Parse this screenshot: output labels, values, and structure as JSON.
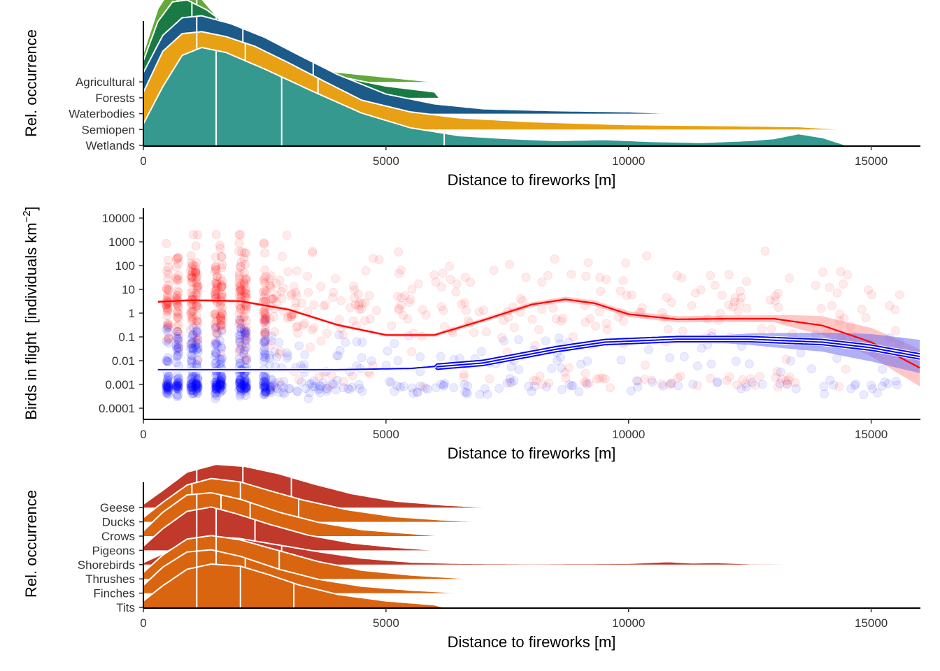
{
  "chart_data": [
    {
      "type": "ridgeline",
      "panel": "habitat",
      "xlabel": "Distance to fireworks [m]",
      "ylabel": "Rel. occurrence",
      "xlim": [
        0,
        16000
      ],
      "xticks": [
        0,
        5000,
        10000,
        15000
      ],
      "quantile_lines": true,
      "grid": false,
      "categories": [
        {
          "name": "Wetlands",
          "color": "#35998f",
          "quantiles": [
            1500,
            2850,
            6200
          ],
          "density": [
            [
              0,
              0.22
            ],
            [
              400,
              0.6
            ],
            [
              800,
              0.92
            ],
            [
              1200,
              1.0
            ],
            [
              1700,
              0.95
            ],
            [
              2500,
              0.78
            ],
            [
              3500,
              0.55
            ],
            [
              4500,
              0.33
            ],
            [
              5500,
              0.18
            ],
            [
              6500,
              0.1
            ],
            [
              7500,
              0.07
            ],
            [
              8500,
              0.05
            ],
            [
              9500,
              0.06
            ],
            [
              10500,
              0.04
            ],
            [
              11500,
              0.03
            ],
            [
              12500,
              0.05
            ],
            [
              13000,
              0.07
            ],
            [
              13500,
              0.12
            ],
            [
              14000,
              0.08
            ],
            [
              14500,
              0.0
            ]
          ]
        },
        {
          "name": "Semiopen",
          "color": "#e8a114",
          "quantiles": [
            1100,
            2100,
            3600
          ],
          "density": [
            [
              0,
              0.38
            ],
            [
              400,
              0.8
            ],
            [
              800,
              0.98
            ],
            [
              1200,
              1.0
            ],
            [
              1700,
              0.95
            ],
            [
              2300,
              0.85
            ],
            [
              3000,
              0.68
            ],
            [
              3700,
              0.5
            ],
            [
              4500,
              0.3
            ],
            [
              5500,
              0.18
            ],
            [
              6500,
              0.12
            ],
            [
              8000,
              0.08
            ],
            [
              10000,
              0.05
            ],
            [
              12000,
              0.04
            ],
            [
              13500,
              0.03
            ],
            [
              14500,
              0.0
            ]
          ]
        },
        {
          "name": "Waterbodies",
          "color": "#1c5a8a",
          "quantiles": [
            1100,
            2050,
            3500
          ],
          "density": [
            [
              0,
              0.42
            ],
            [
              400,
              0.8
            ],
            [
              800,
              0.98
            ],
            [
              1200,
              1.0
            ],
            [
              1800,
              0.92
            ],
            [
              2500,
              0.78
            ],
            [
              3200,
              0.6
            ],
            [
              4000,
              0.4
            ],
            [
              5000,
              0.2
            ],
            [
              6000,
              0.1
            ],
            [
              7000,
              0.05
            ],
            [
              8500,
              0.03
            ],
            [
              10000,
              0.02
            ],
            [
              11000,
              0.0
            ]
          ]
        },
        {
          "name": "Forests",
          "color": "#1a7a44",
          "quantiles": [
            1000,
            1500,
            2500
          ],
          "density": [
            [
              0,
              0.38
            ],
            [
              300,
              0.78
            ],
            [
              600,
              0.98
            ],
            [
              900,
              1.0
            ],
            [
              1300,
              0.9
            ],
            [
              1800,
              0.72
            ],
            [
              2500,
              0.52
            ],
            [
              3200,
              0.35
            ],
            [
              4000,
              0.22
            ],
            [
              5000,
              0.12
            ],
            [
              6000,
              0.06
            ],
            [
              6100,
              0.0
            ]
          ]
        },
        {
          "name": "Agricultural",
          "color": "#63a83b",
          "quantiles": [
            700,
            1100,
            1800
          ],
          "density": [
            [
              0,
              0.3
            ],
            [
              300,
              0.75
            ],
            [
              600,
              0.98
            ],
            [
              900,
              1.0
            ],
            [
              1200,
              0.85
            ],
            [
              1600,
              0.62
            ],
            [
              2200,
              0.4
            ],
            [
              3000,
              0.22
            ],
            [
              4000,
              0.1
            ],
            [
              5000,
              0.05
            ],
            [
              6000,
              0.0
            ]
          ]
        }
      ]
    },
    {
      "type": "scatter",
      "panel": "birds-in-flight",
      "xlabel": "Distance to fireworks [m]",
      "ylabel": "Birds in flight [individuals km−2]",
      "ylabel_text": "Birds in flight",
      "ylabel_unit": "individuals km",
      "ylabel_exponent": "−2",
      "xlim": [
        0,
        16000
      ],
      "xticks": [
        0,
        5000,
        10000,
        15000
      ],
      "yscale": "log",
      "ylim": [
        3e-05,
        30000
      ],
      "ytick_labels": [
        "0.0001",
        "0.001",
        "0.01",
        "0.1",
        "1",
        "10",
        "100",
        "1000",
        "10000"
      ],
      "yticks": [
        0.0001,
        0.001,
        0.01,
        0.1,
        1,
        10,
        100,
        1000,
        10000
      ],
      "grid": false,
      "series": [
        {
          "color": "#ff0000",
          "fit": [
            [
              300,
              3.0
            ],
            [
              1000,
              3.5
            ],
            [
              2000,
              3.2
            ],
            [
              3000,
              1.4
            ],
            [
              4000,
              0.32
            ],
            [
              5000,
              0.12
            ],
            [
              6000,
              0.12
            ],
            [
              7000,
              0.5
            ],
            [
              8000,
              2.3
            ],
            [
              8700,
              3.8
            ],
            [
              9300,
              2.6
            ],
            [
              10000,
              0.9
            ],
            [
              11000,
              0.55
            ],
            [
              12000,
              0.58
            ],
            [
              13000,
              0.58
            ],
            [
              14000,
              0.3
            ],
            [
              15000,
              0.06
            ],
            [
              16000,
              0.005
            ]
          ],
          "band_factor": [
            [
              300,
              1.15
            ],
            [
              5000,
              1.15
            ],
            [
              9000,
              1.3
            ],
            [
              13000,
              1.4
            ],
            [
              14500,
              3
            ],
            [
              16000,
              6
            ]
          ]
        },
        {
          "color": "#0000ff",
          "fit": [
            [
              300,
              0.004
            ],
            [
              2000,
              0.004
            ],
            [
              4000,
              0.004
            ],
            [
              5500,
              0.0045
            ],
            [
              7000,
              0.008
            ],
            [
              8500,
              0.03
            ],
            [
              9500,
              0.06
            ],
            [
              11000,
              0.08
            ],
            [
              12500,
              0.08
            ],
            [
              14000,
              0.06
            ],
            [
              15000,
              0.035
            ],
            [
              16000,
              0.015
            ]
          ],
          "band_factor": [
            [
              300,
              1.1
            ],
            [
              5000,
              1.1
            ],
            [
              9000,
              1.3
            ],
            [
              12000,
              1.5
            ],
            [
              14000,
              2.5
            ],
            [
              16000,
              5
            ]
          ]
        }
      ]
    },
    {
      "type": "ridgeline",
      "panel": "species-group",
      "xlabel": "Distance to fireworks [m]",
      "ylabel": "Rel. occurrence",
      "xlim": [
        0,
        16000
      ],
      "xticks": [
        0,
        5000,
        10000,
        15000
      ],
      "quantile_lines": true,
      "grid": false,
      "categories": [
        {
          "name": "Tits",
          "color": "#d96511",
          "quantiles": [
            1100,
            2000,
            3100
          ],
          "density": [
            [
              0,
              0.15
            ],
            [
              400,
              0.5
            ],
            [
              900,
              0.88
            ],
            [
              1400,
              1.0
            ],
            [
              2000,
              0.95
            ],
            [
              2600,
              0.75
            ],
            [
              3200,
              0.52
            ],
            [
              4000,
              0.3
            ],
            [
              5000,
              0.15
            ],
            [
              6000,
              0.06
            ],
            [
              6200,
              0.0
            ]
          ]
        },
        {
          "name": "Finches",
          "color": "#d96511",
          "quantiles": [
            1100,
            1500,
            2100
          ],
          "density": [
            [
              0,
              0.18
            ],
            [
              400,
              0.6
            ],
            [
              900,
              0.95
            ],
            [
              1400,
              1.0
            ],
            [
              2000,
              0.85
            ],
            [
              2800,
              0.55
            ],
            [
              3600,
              0.32
            ],
            [
              4500,
              0.16
            ],
            [
              5500,
              0.07
            ],
            [
              6600,
              0.0
            ]
          ]
        },
        {
          "name": "Thrushes",
          "color": "#d96511",
          "quantiles": [
            1100,
            1500,
            2800
          ],
          "density": [
            [
              0,
              0.15
            ],
            [
              400,
              0.55
            ],
            [
              900,
              0.92
            ],
            [
              1400,
              1.0
            ],
            [
              2000,
              0.9
            ],
            [
              2800,
              0.65
            ],
            [
              3600,
              0.4
            ],
            [
              4500,
              0.2
            ],
            [
              5500,
              0.09
            ],
            [
              6800,
              0.0
            ]
          ]
        },
        {
          "name": "Shorebirds",
          "color": "#c0392b",
          "quantiles": [
            1100,
            2000,
            2850
          ],
          "density": [
            [
              0,
              0.05
            ],
            [
              400,
              0.25
            ],
            [
              900,
              0.55
            ],
            [
              1400,
              0.65
            ],
            [
              2000,
              0.6
            ],
            [
              2800,
              0.45
            ],
            [
              3600,
              0.3
            ],
            [
              4500,
              0.15
            ],
            [
              5500,
              0.06
            ],
            [
              6500,
              0.03
            ],
            [
              8000,
              0.02
            ],
            [
              10000,
              0.03
            ],
            [
              10800,
              0.07
            ],
            [
              11300,
              0.04
            ],
            [
              11800,
              0.05
            ],
            [
              12500,
              0.02
            ],
            [
              14500,
              0.0
            ]
          ]
        },
        {
          "name": "Pigeons",
          "color": "#c0392b",
          "quantiles": [
            1100,
            1500,
            2300
          ],
          "density": [
            [
              0,
              0.1
            ],
            [
              400,
              0.5
            ],
            [
              900,
              0.9
            ],
            [
              1400,
              1.0
            ],
            [
              1900,
              0.85
            ],
            [
              2600,
              0.6
            ],
            [
              3400,
              0.35
            ],
            [
              4300,
              0.17
            ],
            [
              5200,
              0.07
            ],
            [
              6100,
              0.0
            ]
          ]
        },
        {
          "name": "Crows",
          "color": "#d96511",
          "quantiles": [
            1100,
            1600,
            2200
          ],
          "density": [
            [
              0,
              0.12
            ],
            [
              400,
              0.55
            ],
            [
              900,
              0.95
            ],
            [
              1400,
              1.0
            ],
            [
              2000,
              0.85
            ],
            [
              2800,
              0.55
            ],
            [
              3600,
              0.32
            ],
            [
              4500,
              0.15
            ],
            [
              5500,
              0.06
            ],
            [
              6200,
              0.0
            ]
          ]
        },
        {
          "name": "Ducks",
          "color": "#d96511",
          "quantiles": [
            1000,
            2000,
            3200
          ],
          "density": [
            [
              0,
              0.1
            ],
            [
              400,
              0.45
            ],
            [
              900,
              0.85
            ],
            [
              1400,
              1.0
            ],
            [
              2000,
              0.92
            ],
            [
              2600,
              0.72
            ],
            [
              3300,
              0.5
            ],
            [
              4200,
              0.28
            ],
            [
              5200,
              0.12
            ],
            [
              6100,
              0.05
            ],
            [
              7000,
              0.0
            ]
          ]
        },
        {
          "name": "Geese",
          "color": "#c0392b",
          "quantiles": [
            1100,
            2050,
            3050
          ],
          "density": [
            [
              0,
              0.08
            ],
            [
              400,
              0.4
            ],
            [
              900,
              0.82
            ],
            [
              1500,
              1.0
            ],
            [
              2100,
              0.95
            ],
            [
              2800,
              0.78
            ],
            [
              3500,
              0.55
            ],
            [
              4300,
              0.32
            ],
            [
              5200,
              0.15
            ],
            [
              6200,
              0.06
            ],
            [
              7200,
              0.0
            ]
          ]
        }
      ]
    }
  ]
}
